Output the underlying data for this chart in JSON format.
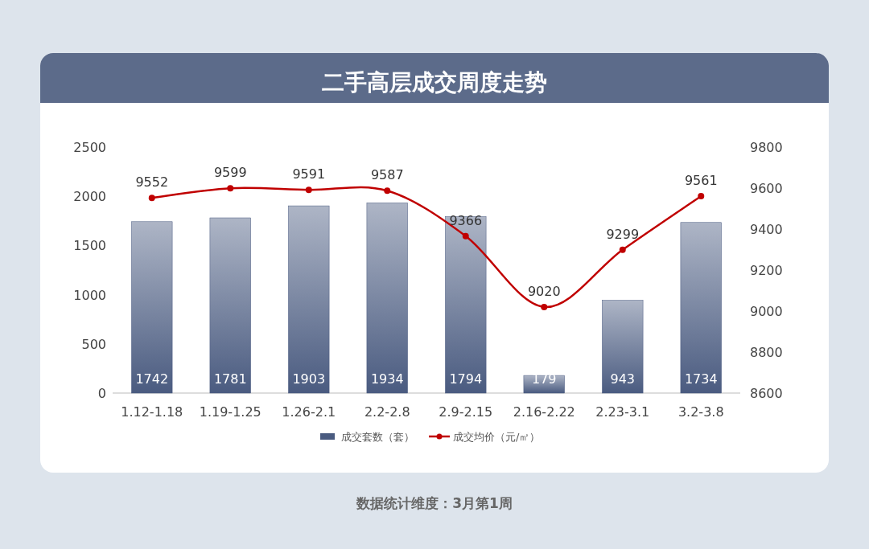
{
  "chart_data": {
    "type": "bar",
    "title": "二手高层成交周度走势",
    "categories": [
      "1.12-1.18",
      "1.19-1.25",
      "1.26-2.1",
      "2.2-2.8",
      "2.9-2.15",
      "2.16-2.22",
      "2.23-3.1",
      "3.2-3.8"
    ],
    "series": [
      {
        "name": "成交套数（套）",
        "color": "#4a5b80",
        "values": [
          1742,
          1781,
          1903,
          1934,
          1794,
          179,
          943,
          1734
        ]
      },
      {
        "name": "成交均价（元/㎡）",
        "type": "line",
        "axis": "y2",
        "color": "#c00000",
        "values": [
          9552,
          9599,
          9591,
          9587,
          9366,
          9020,
          9299,
          9561
        ]
      }
    ],
    "ylim": [
      0,
      2500
    ],
    "yticks": [
      0,
      500,
      1000,
      1500,
      2000,
      2500
    ],
    "y2lim": [
      8600,
      9800
    ],
    "y2ticks": [
      8600,
      8800,
      9000,
      9200,
      9400,
      9600,
      9800
    ],
    "data_labels": true,
    "legend": "bottom",
    "grid": false,
    "marker": "circle",
    "line_style": "solid",
    "annotations": [
      "数据统计维度：3月第1周"
    ]
  }
}
